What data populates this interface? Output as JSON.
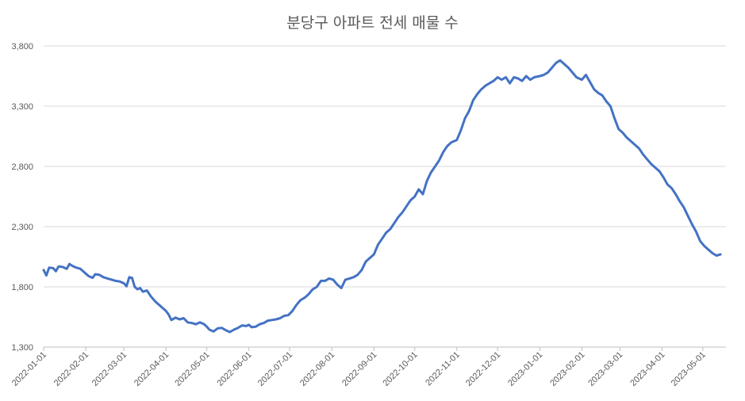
{
  "chart_data": {
    "type": "line",
    "title": "분당구 아파트 전세 매물 수",
    "xlabel": "",
    "ylabel": "",
    "ylim": [
      1300,
      3800
    ],
    "y_ticks": [
      1300,
      1800,
      2300,
      2800,
      3300,
      3800
    ],
    "y_tick_labels": [
      "1,300",
      "1,800",
      "2,300",
      "2,800",
      "3,300",
      "3,800"
    ],
    "x_tick_labels": [
      "2022-01-01",
      "2022-02-01",
      "2022-03-01",
      "2022-04-01",
      "2022-05-01",
      "2022-06-01",
      "2022-07-01",
      "2022-08-01",
      "2022-09-01",
      "2022-10-01",
      "2022-11-01",
      "2022-12-01",
      "2023-01-01",
      "2023-02-01",
      "2023-03-01",
      "2023-04-01",
      "2023-05-01"
    ],
    "grid": true,
    "line_color": "#4472C4",
    "series": [
      {
        "points": [
          [
            "2022-01-01",
            1940
          ],
          [
            "2022-01-03",
            1895
          ],
          [
            "2022-01-05",
            1960
          ],
          [
            "2022-01-08",
            1955
          ],
          [
            "2022-01-10",
            1930
          ],
          [
            "2022-01-12",
            1970
          ],
          [
            "2022-01-15",
            1965
          ],
          [
            "2022-01-18",
            1950
          ],
          [
            "2022-01-20",
            1990
          ],
          [
            "2022-01-22",
            1975
          ],
          [
            "2022-01-25",
            1960
          ],
          [
            "2022-01-28",
            1950
          ],
          [
            "2022-01-31",
            1920
          ],
          [
            "2022-02-03",
            1890
          ],
          [
            "2022-02-06",
            1875
          ],
          [
            "2022-02-08",
            1905
          ],
          [
            "2022-02-11",
            1900
          ],
          [
            "2022-02-14",
            1880
          ],
          [
            "2022-02-17",
            1870
          ],
          [
            "2022-02-20",
            1860
          ],
          [
            "2022-02-23",
            1850
          ],
          [
            "2022-02-26",
            1845
          ],
          [
            "2022-03-01",
            1830
          ],
          [
            "2022-03-03",
            1805
          ],
          [
            "2022-03-05",
            1880
          ],
          [
            "2022-03-07",
            1875
          ],
          [
            "2022-03-09",
            1800
          ],
          [
            "2022-03-11",
            1780
          ],
          [
            "2022-03-13",
            1790
          ],
          [
            "2022-03-15",
            1760
          ],
          [
            "2022-03-18",
            1770
          ],
          [
            "2022-03-21",
            1720
          ],
          [
            "2022-03-24",
            1680
          ],
          [
            "2022-03-27",
            1650
          ],
          [
            "2022-03-30",
            1620
          ],
          [
            "2022-04-01",
            1600
          ],
          [
            "2022-04-03",
            1570
          ],
          [
            "2022-04-05",
            1525
          ],
          [
            "2022-04-08",
            1545
          ],
          [
            "2022-04-11",
            1530
          ],
          [
            "2022-04-14",
            1540
          ],
          [
            "2022-04-17",
            1505
          ],
          [
            "2022-04-20",
            1500
          ],
          [
            "2022-04-23",
            1490
          ],
          [
            "2022-04-26",
            1505
          ],
          [
            "2022-04-29",
            1490
          ],
          [
            "2022-05-01",
            1470
          ],
          [
            "2022-05-03",
            1445
          ],
          [
            "2022-05-06",
            1430
          ],
          [
            "2022-05-09",
            1455
          ],
          [
            "2022-05-12",
            1460
          ],
          [
            "2022-05-15",
            1440
          ],
          [
            "2022-05-18",
            1425
          ],
          [
            "2022-05-21",
            1445
          ],
          [
            "2022-05-24",
            1460
          ],
          [
            "2022-05-27",
            1480
          ],
          [
            "2022-05-30",
            1475
          ],
          [
            "2022-06-01",
            1485
          ],
          [
            "2022-06-03",
            1465
          ],
          [
            "2022-06-06",
            1470
          ],
          [
            "2022-06-09",
            1490
          ],
          [
            "2022-06-12",
            1500
          ],
          [
            "2022-06-15",
            1520
          ],
          [
            "2022-06-18",
            1525
          ],
          [
            "2022-06-21",
            1530
          ],
          [
            "2022-06-24",
            1540
          ],
          [
            "2022-06-27",
            1560
          ],
          [
            "2022-06-30",
            1565
          ],
          [
            "2022-07-03",
            1600
          ],
          [
            "2022-07-06",
            1650
          ],
          [
            "2022-07-09",
            1690
          ],
          [
            "2022-07-12",
            1710
          ],
          [
            "2022-07-15",
            1740
          ],
          [
            "2022-07-18",
            1780
          ],
          [
            "2022-07-21",
            1800
          ],
          [
            "2022-07-24",
            1850
          ],
          [
            "2022-07-27",
            1850
          ],
          [
            "2022-07-30",
            1870
          ],
          [
            "2022-08-02",
            1860
          ],
          [
            "2022-08-05",
            1820
          ],
          [
            "2022-08-08",
            1790
          ],
          [
            "2022-08-11",
            1860
          ],
          [
            "2022-08-14",
            1870
          ],
          [
            "2022-08-17",
            1880
          ],
          [
            "2022-08-20",
            1900
          ],
          [
            "2022-08-23",
            1940
          ],
          [
            "2022-08-26",
            2010
          ],
          [
            "2022-08-29",
            2040
          ],
          [
            "2022-09-01",
            2070
          ],
          [
            "2022-09-04",
            2150
          ],
          [
            "2022-09-07",
            2200
          ],
          [
            "2022-09-10",
            2250
          ],
          [
            "2022-09-13",
            2280
          ],
          [
            "2022-09-16",
            2330
          ],
          [
            "2022-09-19",
            2380
          ],
          [
            "2022-09-22",
            2420
          ],
          [
            "2022-09-25",
            2470
          ],
          [
            "2022-09-28",
            2520
          ],
          [
            "2022-10-01",
            2550
          ],
          [
            "2022-10-04",
            2610
          ],
          [
            "2022-10-07",
            2570
          ],
          [
            "2022-10-10",
            2680
          ],
          [
            "2022-10-13",
            2750
          ],
          [
            "2022-10-16",
            2800
          ],
          [
            "2022-10-19",
            2850
          ],
          [
            "2022-10-22",
            2920
          ],
          [
            "2022-10-25",
            2970
          ],
          [
            "2022-10-28",
            3000
          ],
          [
            "2022-11-01",
            3020
          ],
          [
            "2022-11-04",
            3100
          ],
          [
            "2022-11-07",
            3200
          ],
          [
            "2022-11-10",
            3260
          ],
          [
            "2022-11-13",
            3350
          ],
          [
            "2022-11-16",
            3400
          ],
          [
            "2022-11-19",
            3440
          ],
          [
            "2022-11-22",
            3470
          ],
          [
            "2022-11-25",
            3490
          ],
          [
            "2022-11-28",
            3510
          ],
          [
            "2022-12-01",
            3540
          ],
          [
            "2022-12-04",
            3520
          ],
          [
            "2022-12-07",
            3540
          ],
          [
            "2022-12-10",
            3490
          ],
          [
            "2022-12-13",
            3540
          ],
          [
            "2022-12-16",
            3530
          ],
          [
            "2022-12-19",
            3510
          ],
          [
            "2022-12-22",
            3550
          ],
          [
            "2022-12-25",
            3520
          ],
          [
            "2022-12-28",
            3540
          ],
          [
            "2023-01-01",
            3550
          ],
          [
            "2023-01-04",
            3560
          ],
          [
            "2023-01-07",
            3580
          ],
          [
            "2023-01-10",
            3620
          ],
          [
            "2023-01-13",
            3660
          ],
          [
            "2023-01-16",
            3680
          ],
          [
            "2023-01-19",
            3650
          ],
          [
            "2023-01-22",
            3620
          ],
          [
            "2023-01-25",
            3580
          ],
          [
            "2023-01-28",
            3540
          ],
          [
            "2023-02-01",
            3520
          ],
          [
            "2023-02-04",
            3560
          ],
          [
            "2023-02-07",
            3500
          ],
          [
            "2023-02-10",
            3440
          ],
          [
            "2023-02-13",
            3410
          ],
          [
            "2023-02-16",
            3390
          ],
          [
            "2023-02-19",
            3340
          ],
          [
            "2023-02-22",
            3300
          ],
          [
            "2023-02-25",
            3200
          ],
          [
            "2023-02-28",
            3110
          ],
          [
            "2023-03-03",
            3080
          ],
          [
            "2023-03-06",
            3040
          ],
          [
            "2023-03-09",
            3010
          ],
          [
            "2023-03-12",
            2980
          ],
          [
            "2023-03-15",
            2950
          ],
          [
            "2023-03-18",
            2900
          ],
          [
            "2023-03-21",
            2860
          ],
          [
            "2023-03-24",
            2820
          ],
          [
            "2023-03-27",
            2790
          ],
          [
            "2023-03-30",
            2760
          ],
          [
            "2023-04-02",
            2710
          ],
          [
            "2023-04-05",
            2650
          ],
          [
            "2023-04-08",
            2620
          ],
          [
            "2023-04-11",
            2570
          ],
          [
            "2023-04-14",
            2510
          ],
          [
            "2023-04-17",
            2460
          ],
          [
            "2023-04-20",
            2390
          ],
          [
            "2023-04-23",
            2320
          ],
          [
            "2023-04-26",
            2260
          ],
          [
            "2023-04-29",
            2180
          ],
          [
            "2023-05-02",
            2140
          ],
          [
            "2023-05-05",
            2110
          ],
          [
            "2023-05-08",
            2080
          ],
          [
            "2023-05-11",
            2060
          ],
          [
            "2023-05-14",
            2070
          ]
        ]
      }
    ]
  }
}
